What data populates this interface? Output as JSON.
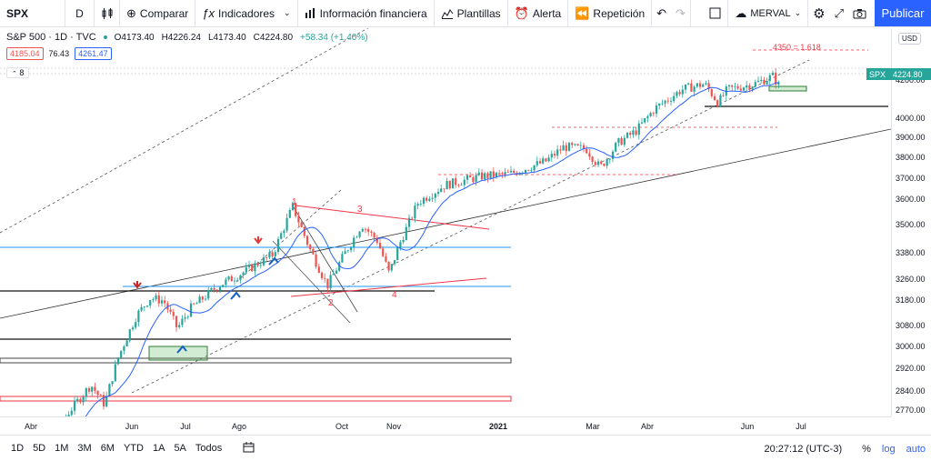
{
  "toolbar": {
    "symbol": "SPX",
    "interval": "D",
    "compare_label": "Comparar",
    "indicators_label": "Indicadores",
    "financials_label": "Información financiera",
    "templates_label": "Plantillas",
    "alert_label": "Alerta",
    "replay_label": "Repetición",
    "layout_name": "MERVAL",
    "publish_label": "Publicar"
  },
  "legend": {
    "symbol_desc": "S&P 500 · 1D · TVC",
    "open": "O4173.40",
    "high": "H4226.24",
    "low": "L4173.40",
    "close": "C4224.80",
    "change": "+58.34 (+1.40%)",
    "bid": "4185.04",
    "spread": "76.43",
    "ask": "4261.47",
    "collapse_count": "8"
  },
  "price_axis": {
    "currency": "USD",
    "ticks": [
      "4200.00",
      "4000.00",
      "3900.00",
      "3800.00",
      "3700.00",
      "3600.00",
      "3500.00",
      "3380.00",
      "3260.00",
      "3180.00",
      "3080.00",
      "3000.00",
      "2920.00",
      "2840.00",
      "2770.00"
    ],
    "last_symbol": "SPX",
    "last_price": "4224.80"
  },
  "time_axis": {
    "ticks": [
      "Abr",
      "Jun",
      "Jul",
      "Ago",
      "Oct",
      "Nov",
      "2021",
      "Mar",
      "Abr",
      "Jun",
      "Jul"
    ]
  },
  "annotations": {
    "fib_label": "4350 = 1.618",
    "wave_labels": [
      "1",
      "2",
      "3",
      "4"
    ]
  },
  "bottom": {
    "ranges": [
      "1D",
      "5D",
      "1M",
      "3M",
      "6M",
      "YTD",
      "1A",
      "5A",
      "Todos"
    ],
    "clock": "20:27:12 (UTC-3)",
    "percent": "%",
    "log": "log",
    "auto": "auto"
  },
  "colors": {
    "up": "#26a69a",
    "down": "#ef5350",
    "ma": "#2962ff",
    "accent": "#2962ff",
    "hline_blue": "#2196f3",
    "trend_red": "#f23645"
  }
}
